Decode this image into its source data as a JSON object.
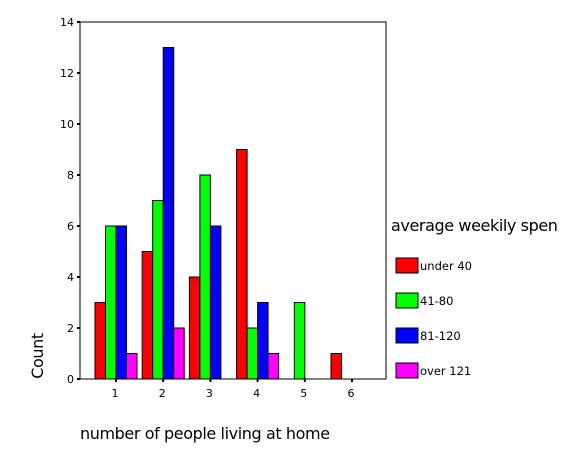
{
  "chart_data": {
    "type": "bar",
    "xlabel": "number of people living at home",
    "ylabel": "Count",
    "categories": [
      "1",
      "2",
      "3",
      "4",
      "5",
      "6"
    ],
    "ylim": [
      0,
      14
    ],
    "yticks": [
      0,
      2,
      4,
      6,
      8,
      10,
      12,
      14
    ],
    "grid": false,
    "legend": {
      "title": "average weekily spen",
      "placement": "right"
    },
    "series": [
      {
        "name": "under 40",
        "color": "#ff0000",
        "values": [
          3,
          5,
          4,
          9,
          0,
          1
        ]
      },
      {
        "name": "41-80",
        "color": "#00ff00",
        "values": [
          6,
          7,
          8,
          2,
          3,
          0
        ]
      },
      {
        "name": "81-120",
        "color": "#0000ff",
        "values": [
          6,
          13,
          6,
          3,
          0,
          0
        ]
      },
      {
        "name": "over 121",
        "color": "#ff00ff",
        "values": [
          1,
          2,
          0,
          1,
          0,
          0
        ]
      }
    ]
  }
}
